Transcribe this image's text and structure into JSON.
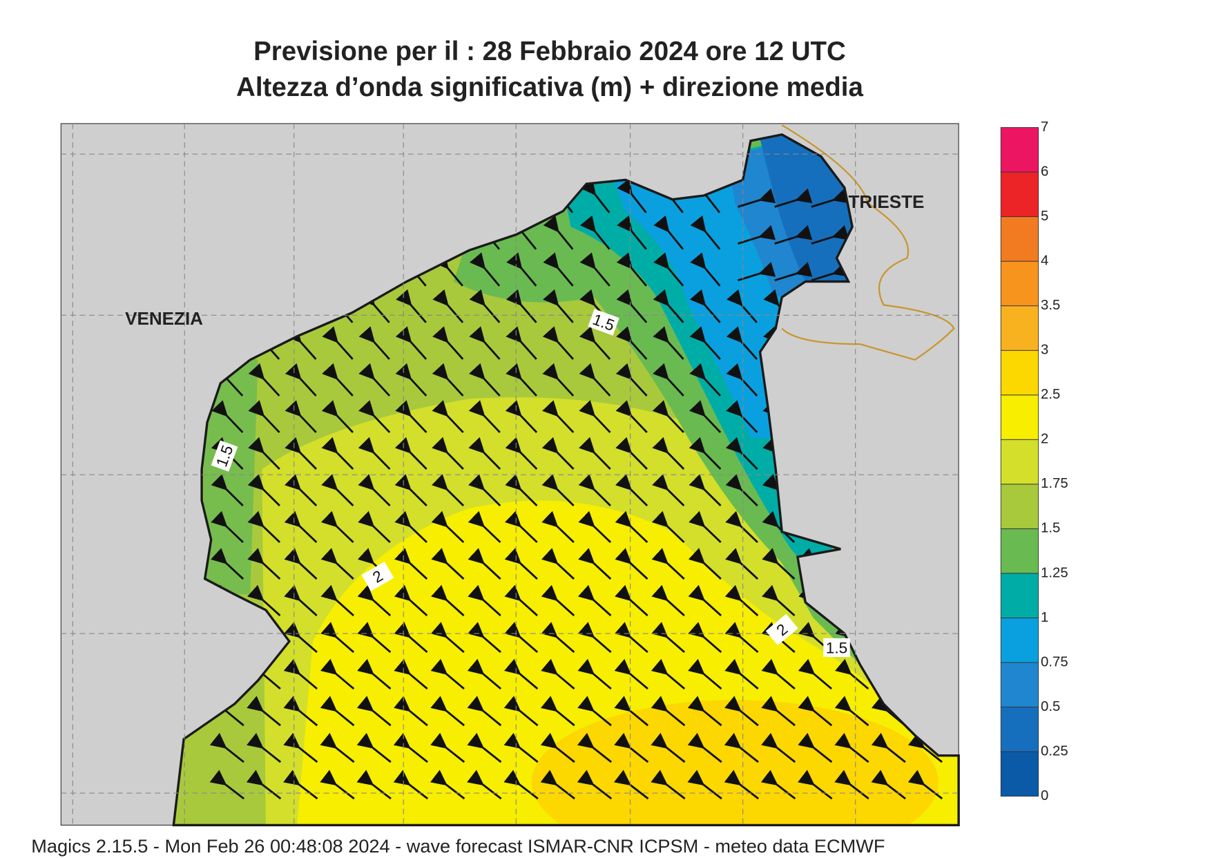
{
  "header": {
    "title": "Previsione per il  :  28  Febbraio 2024   ore 12 UTC",
    "subtitle": "Altezza d’onda significativa (m) + direzione media"
  },
  "places": [
    {
      "label": "VENEZIA"
    },
    {
      "label": "TRIESTE"
    }
  ],
  "contour_labels": [
    "1.5",
    "1.5",
    "2",
    "2",
    "1.5"
  ],
  "colorbar": {
    "labels": [
      "0",
      "0.25",
      "0.5",
      "0.75",
      "1",
      "1.25",
      "1.5",
      "1.75",
      "2",
      "2.5",
      "3",
      "3.5",
      "4",
      "5",
      "6",
      "7"
    ],
    "colors": [
      "#0b5aa8",
      "#166fbd",
      "#1f86cf",
      "#0aa0df",
      "#00ada6",
      "#6aba52",
      "#a9c93c",
      "#d3df2b",
      "#f7ee00",
      "#fdd700",
      "#f9b21f",
      "#f7941e",
      "#f27b21",
      "#ec2428",
      "#ec1561"
    ]
  },
  "footer": "Magics 2.15.5 - Mon Feb 26 00:48:08 2024 - wave forecast  ISMAR-CNR  ICPSM - meteo data   ECMWF"
}
